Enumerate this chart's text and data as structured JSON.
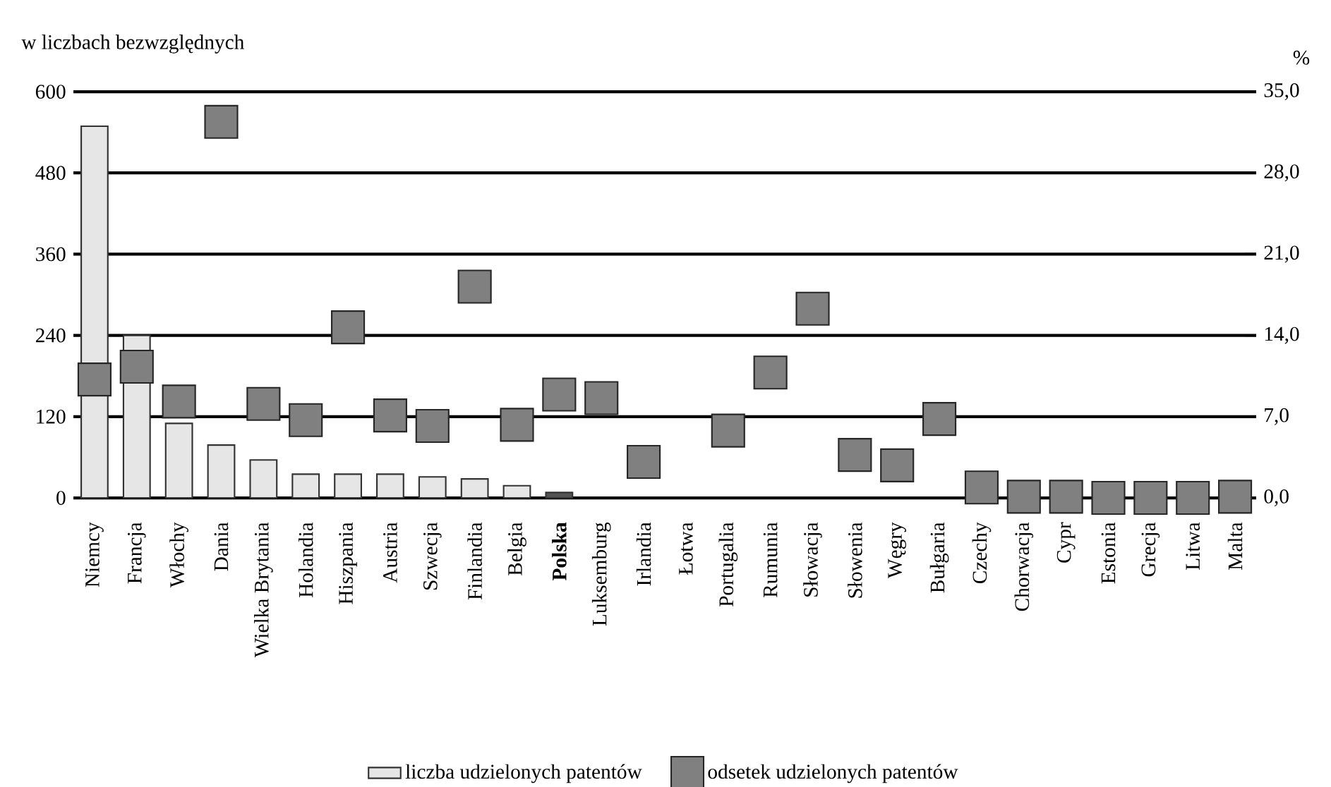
{
  "chart_data": {
    "type": "bar",
    "ylabel": "w liczbach bezwzględnych",
    "y2label": "%",
    "categories": [
      "Niemcy",
      "Francja",
      "Włochy",
      "Dania",
      "Wielka Brytania",
      "Holandia",
      "Hiszpania",
      "Austria",
      "Szwecja",
      "Finlandia",
      "Belgia",
      "**Polska**",
      "Luksemburg",
      "Irlandia",
      "Łotwa",
      "Portugalia",
      "Rumunia",
      "Słowacja",
      "Słowenia",
      "Węgry",
      "Bułgaria",
      "Czechy",
      "Chorwacja",
      "Cypr",
      "Estonia",
      "Grecja",
      "Litwa",
      "Malta"
    ],
    "series": [
      {
        "name": "liczba udzielonych patentów",
        "color": "#e6e6e6",
        "colors": [
          "#e6e6e6",
          "#e6e6e6",
          "#e6e6e6",
          "#e6e6e6",
          "#e6e6e6",
          "#e6e6e6",
          "#e6e6e6",
          "#e6e6e6",
          "#e6e6e6",
          "#e6e6e6",
          "#e6e6e6",
          "#555555",
          "#e6e6e6",
          "#e6e6e6",
          "#e6e6e6",
          "#e6e6e6",
          "#e6e6e6",
          "#e6e6e6",
          "#e6e6e6",
          "#e6e6e6",
          "#e6e6e6",
          "#e6e6e6",
          "#e6e6e6",
          "#e6e6e6",
          "#e6e6e6",
          "#e6e6e6",
          "#e6e6e6",
          "#e6e6e6"
        ],
        "values": [
          549,
          240,
          110,
          78,
          56,
          35,
          35,
          35,
          31,
          28,
          18,
          8,
          null,
          null,
          null,
          null,
          null,
          null,
          null,
          null,
          null,
          null,
          null,
          null,
          null,
          null,
          null,
          null
        ]
      },
      {
        "name": "odsetek udzielonych patentów",
        "type": "scatter",
        "axis": "y2",
        "color": "#808080",
        "marker": "square",
        "values": [
          10.2,
          11.3,
          8.3,
          32.4,
          8.1,
          6.7,
          14.7,
          7.1,
          6.2,
          18.2,
          6.3,
          8.9,
          8.6,
          3.1,
          null,
          5.8,
          10.8,
          16.3,
          3.7,
          2.8,
          6.8,
          0.9,
          0.1,
          0.1,
          0.0,
          0.0,
          0.0,
          0.1
        ]
      }
    ],
    "ylim": [
      0,
      600
    ],
    "yticks": [
      0,
      120,
      240,
      360,
      480,
      600
    ],
    "y2lim": [
      0,
      35
    ],
    "y2ticks": [
      {
        "value": 0,
        "label": "0,0"
      },
      {
        "value": 7,
        "label": "7,0"
      },
      {
        "value": 14,
        "label": "14,0"
      },
      {
        "value": 21,
        "label": "21,0"
      },
      {
        "value": 28,
        "label": "28,0"
      },
      {
        "value": 35,
        "label": "35,0"
      }
    ],
    "grid": "y",
    "legend": "bottom"
  }
}
